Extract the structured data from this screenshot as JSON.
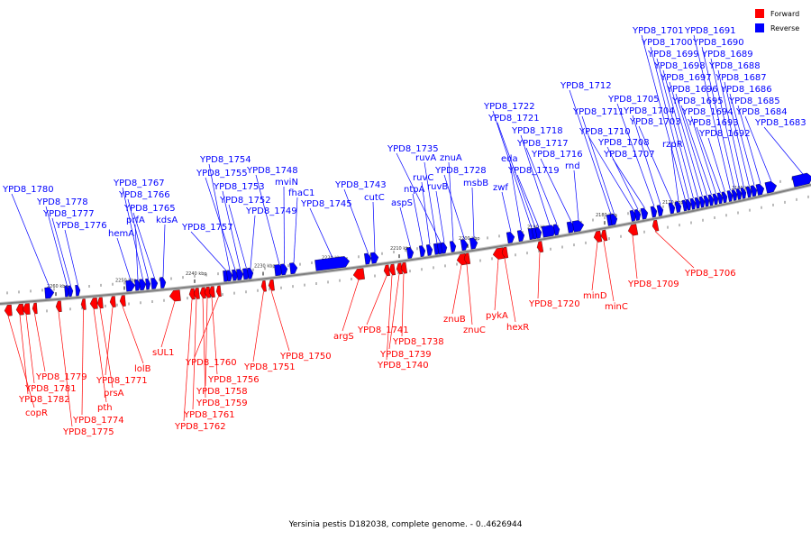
{
  "colors": {
    "forward": "#ff0000",
    "reverse": "#0000ff",
    "backbone": "#808080"
  },
  "legend": {
    "forward_label": "Forward",
    "reverse_label": "Reverse"
  },
  "caption": "Yersinia pestis D182038, complete genome. - 0..4626944",
  "kbp_ticks": [
    "2260 kbp",
    "2250 kbp",
    "2240 kbp",
    "2230 kbp",
    "2220 kbp",
    "2210 kbp",
    "2200 kbp",
    "2190 kbp",
    "2180 kbp",
    "2170 kbp",
    "2160 kbp"
  ],
  "reverse_genes": [
    "YPD8_1780",
    "YPD8_1778",
    "YPD8_1777",
    "YPD8_1776",
    "hemA",
    "prfA",
    "YPD8_1767",
    "YPD8_1766",
    "YPD8_1765",
    "kdsA",
    "YPD8_1757",
    "YPD8_1754",
    "YPD8_1755",
    "YPD8_1753",
    "YPD8_1752",
    "YPD8_1749",
    "YPD8_1748",
    "mviN",
    "fhaC1",
    "YPD8_1745",
    "YPD8_1743",
    "cutC",
    "aspS",
    "ntpA",
    "ruvC",
    "ruvA",
    "YPD8_1735",
    "ruvB",
    "znuA",
    "YPD8_1728",
    "msbB",
    "zwf",
    "eda",
    "YPD8_1722",
    "YPD8_1721",
    "YPD8_1719",
    "YPD8_1718",
    "YPD8_1717",
    "YPD8_1716",
    "rnd",
    "YPD8_1712",
    "YPD8_1711",
    "YPD8_1710",
    "YPD8_1708",
    "YPD8_1707",
    "YPD8_1705",
    "YPD8_1704",
    "YPD8_1703",
    "rzpR",
    "YPD8_1701",
    "YPD8_1700",
    "YPD8_1699",
    "YPD8_1698",
    "YPD8_1697",
    "YPD8_1696",
    "YPD8_1695",
    "YPD8_1694",
    "YPD8_1693",
    "YPD8_1692",
    "YPD8_1691",
    "YPD8_1690",
    "YPD8_1689",
    "YPD8_1688",
    "YPD8_1687",
    "YPD8_1686",
    "YPD8_1685",
    "YPD8_1684",
    "YPD8_1683"
  ],
  "forward_genes": [
    "copR",
    "YPD8_1782",
    "YPD8_1781",
    "YPD8_1779",
    "YPD8_1775",
    "YPD8_1774",
    "pth",
    "prsA",
    "YPD8_1771",
    "lolB",
    "sUL1",
    "YPD8_1762",
    "YPD8_1761",
    "YPD8_1759",
    "YPD8_1758",
    "YPD8_1756",
    "YPD8_1760",
    "YPD8_1751",
    "YPD8_1750",
    "argS",
    "YPD8_1741",
    "YPD8_1740",
    "YPD8_1739",
    "YPD8_1738",
    "znuB",
    "znuC",
    "pykA",
    "hexR",
    "YPD8_1720",
    "minD",
    "minC",
    "YPD8_1709",
    "YPD8_1706"
  ]
}
